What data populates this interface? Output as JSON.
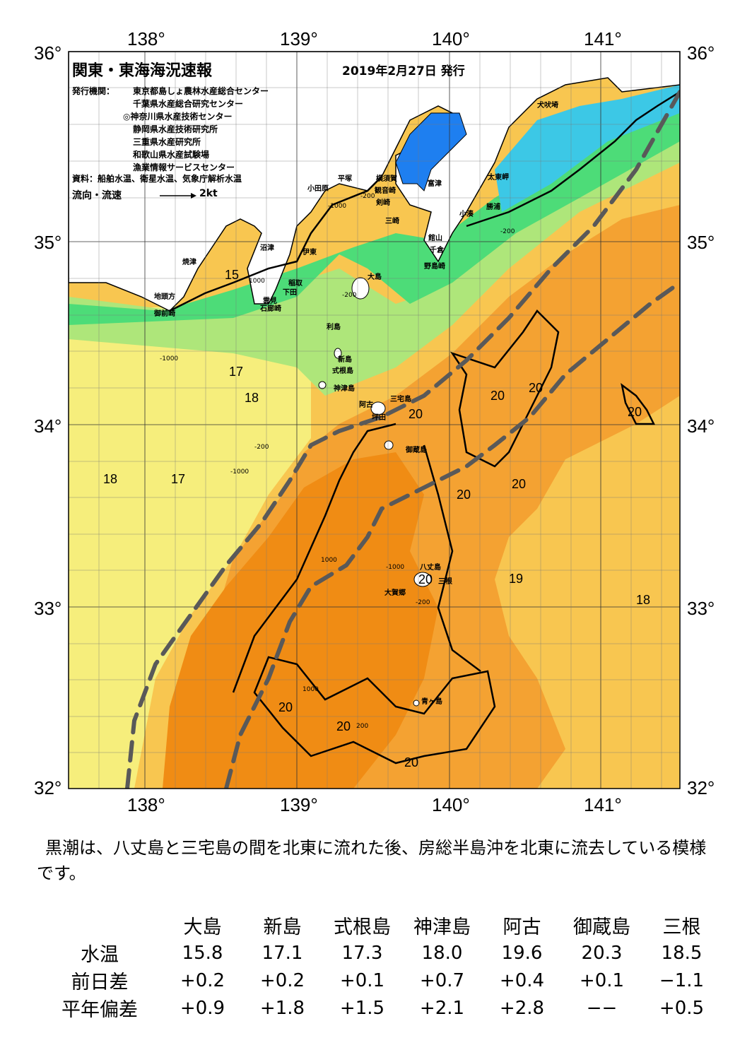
{
  "title": "関東・東海海況速報",
  "issue_date": "2019年2月27日 発行",
  "issuer_label": "発行機関：",
  "issuers": [
    "東京都島しょ農林水産総合センター",
    "千葉県水産総合研究センター",
    "◎神奈川県水産技術センター",
    "静岡県水産技術研究所",
    "三重県水産研究所",
    "和歌山県水産試験場",
    "漁業情報サービスセンター"
  ],
  "source": "資料：船舶水温、衛星水温、気象庁解析水温",
  "legend_label": "流向・流速",
  "legend_scale": "2kt",
  "axes": {
    "longitudes": [
      "138°",
      "139°",
      "140°",
      "141°"
    ],
    "latitudes": [
      "36°",
      "35°",
      "34°",
      "33°",
      "32°"
    ]
  },
  "place_names": [
    "犬吠埼",
    "太東岬",
    "勝浦",
    "小湊",
    "富津",
    "横須賀",
    "観音崎",
    "剣崎",
    "三崎",
    "館山",
    "千倉",
    "野島崎",
    "平塚",
    "小田原",
    "沼津",
    "焼津",
    "伊東",
    "稲取",
    "下田",
    "石廊崎",
    "雲見",
    "御前崎",
    "地頭方",
    "大島",
    "利島",
    "新島",
    "式根島",
    "神津島",
    "三宅島",
    "阿古",
    "坪田",
    "御蔵島",
    "八丈島",
    "三根",
    "大賀郷",
    "青ヶ島"
  ],
  "isotherm_labels": [
    "15",
    "17",
    "18",
    "18",
    "17",
    "20",
    "20",
    "20",
    "20",
    "20",
    "20",
    "19",
    "18",
    "20",
    "20",
    "20",
    "20"
  ],
  "depth_labels": [
    "-200",
    "-1000",
    "1000",
    "-200",
    "-1000",
    "-200",
    "-1000",
    "1000",
    "200",
    "-1000",
    "-200",
    "1000",
    "-200"
  ],
  "description": "黒潮は、八丈島と三宅島の間を北東に流れた後、房総半島沖を北東に流去している模様です。",
  "table": {
    "columns": [
      "大島",
      "新島",
      "式根島",
      "神津島",
      "阿古",
      "御蔵島",
      "三根"
    ],
    "rows": [
      {
        "label": "水温",
        "values": [
          "15.8",
          "17.1",
          "17.3",
          "18.0",
          "19.6",
          "20.3",
          "18.5"
        ]
      },
      {
        "label": "前日差",
        "values": [
          "+0.2",
          "+0.2",
          "+0.1",
          "+0.7",
          "+0.4",
          "+0.1",
          "−1.1"
        ]
      },
      {
        "label": "平年偏差",
        "values": [
          "+0.9",
          "+1.8",
          "+1.5",
          "+2.1",
          "+2.8",
          "−−",
          "+0.5"
        ]
      }
    ]
  },
  "colors": {
    "land": "#ffffff",
    "cold": "#1e7ff0",
    "cyan": "#3cc8e6",
    "green": "#4ddc78",
    "lightgreen": "#aee67a",
    "yellow": "#f6ee7c",
    "lightorange": "#f8c650",
    "orange": "#f4a232",
    "darkorange": "#f08c14",
    "kuroshio_axis": "#595959"
  }
}
